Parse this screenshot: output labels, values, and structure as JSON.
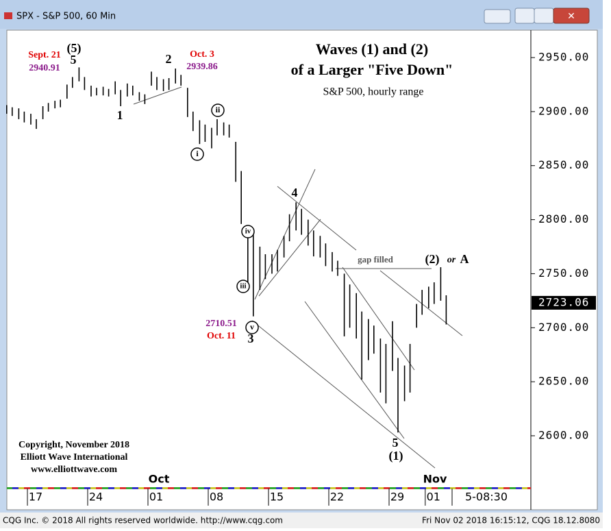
{
  "window": {
    "title": "SPX - S&P 500, 60 Min",
    "status_left": "CQG Inc. © 2018 All rights reserved worldwide. http://www.cqg.com",
    "status_right": "Fri Nov 02 2018 16:15:12, CQG 18.12.8080"
  },
  "chart_data": {
    "type": "range",
    "title": "Waves (1) and (2)",
    "title_line2": "of a Larger \"Five Down\"",
    "subtitle": "S&P 500, hourly range",
    "color": "#000000",
    "grid": false,
    "categories": [
      null,
      null,
      null,
      null,
      "17",
      null,
      null,
      null,
      null,
      null,
      null,
      null,
      null,
      null,
      "24",
      null,
      null,
      null,
      null,
      null,
      null,
      null,
      null,
      null,
      "01",
      null,
      null,
      null,
      null,
      null,
      null,
      null,
      null,
      null,
      "08",
      null,
      null,
      null,
      null,
      null,
      null,
      null,
      null,
      null,
      "15",
      null,
      null,
      null,
      null,
      null,
      null,
      null,
      null,
      null,
      "22",
      null,
      null,
      null,
      null,
      null,
      null,
      null,
      null,
      null,
      "29",
      null,
      null,
      null,
      null,
      null,
      "01",
      null,
      null,
      null
    ],
    "months": [
      "Oct",
      "Nov"
    ],
    "x_time_label": "5-08:30",
    "high": [
      2906,
      2904,
      2903,
      2900,
      2898,
      2893,
      2905,
      2908,
      2910,
      2911,
      2925,
      2932,
      2940.91,
      2932,
      2924,
      2922,
      2923,
      2921,
      2928,
      2920,
      2926,
      2924,
      2918,
      2916,
      2937,
      2932,
      2930,
      2931,
      2939.86,
      2934,
      2922,
      2900,
      2892,
      2888,
      2885,
      2893,
      2890,
      2888,
      2872,
      2845,
      2795,
      2788,
      2775,
      2768,
      2768,
      2772,
      2785,
      2805,
      2816,
      2810,
      2800,
      2790,
      2785,
      2778,
      2770,
      2762,
      2750,
      2740,
      2732,
      2715,
      2708,
      2702,
      2690,
      2685,
      2706,
      2672,
      2665,
      2685,
      2722,
      2735,
      2738,
      2742,
      2756,
      2730
    ],
    "low": [
      2898,
      2896,
      2893,
      2890,
      2888,
      2884,
      2893,
      2900,
      2903,
      2904,
      2912,
      2922,
      2928,
      2920,
      2914,
      2915,
      2915,
      2914,
      2916,
      2905,
      2914,
      2915,
      2910,
      2907,
      2924,
      2920,
      2919,
      2920,
      2926,
      2924,
      2895,
      2882,
      2870,
      2872,
      2866,
      2878,
      2878,
      2876,
      2835,
      2796,
      2740,
      2710.51,
      2735,
      2745,
      2750,
      2752,
      2765,
      2780,
      2790,
      2786,
      2776,
      2766,
      2765,
      2757,
      2752,
      2748,
      2692,
      2700,
      2690,
      2652,
      2670,
      2676,
      2640,
      2630,
      2660,
      2603,
      2632,
      2640,
      2700,
      2712,
      2718,
      2722,
      2725,
      2703
    ],
    "last_value": 2723.06,
    "ylim": [
      2556,
      2975
    ],
    "yticks": [
      {
        "value": 2600,
        "label": "2600.00"
      },
      {
        "value": 2650,
        "label": "2650.00"
      },
      {
        "value": 2700,
        "label": "2700.00"
      },
      {
        "value": 2750,
        "label": "2750.00"
      },
      {
        "value": 2800,
        "label": "2800.00"
      },
      {
        "value": 2850,
        "label": "2850.00"
      },
      {
        "value": 2900,
        "label": "2900.00"
      },
      {
        "value": 2950,
        "label": "2950.00"
      }
    ],
    "annotations": [
      "(5)",
      "5",
      "Sept. 21",
      "2940.91",
      "1",
      "2",
      "Oct. 3",
      "2939.86",
      "i",
      "ii",
      "iv",
      "iii",
      "v",
      "2710.51",
      "Oct. 11",
      "3",
      "4",
      "gap filled",
      "(2)",
      "or",
      "A",
      "5",
      "(1)"
    ],
    "copyright": [
      "Copyright, November 2018",
      "Elliott Wave International",
      "www.elliottwave.com"
    ]
  }
}
